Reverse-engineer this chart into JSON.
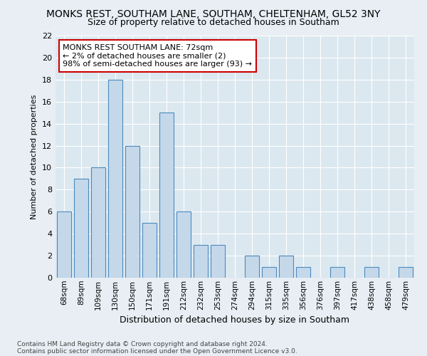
{
  "title1": "MONKS REST, SOUTHAM LANE, SOUTHAM, CHELTENHAM, GL52 3NY",
  "title2": "Size of property relative to detached houses in Southam",
  "xlabel": "Distribution of detached houses by size in Southam",
  "ylabel": "Number of detached properties",
  "footnote1": "Contains HM Land Registry data © Crown copyright and database right 2024.",
  "footnote2": "Contains public sector information licensed under the Open Government Licence v3.0.",
  "categories": [
    "68sqm",
    "89sqm",
    "109sqm",
    "130sqm",
    "150sqm",
    "171sqm",
    "191sqm",
    "212sqm",
    "232sqm",
    "253sqm",
    "274sqm",
    "294sqm",
    "315sqm",
    "335sqm",
    "356sqm",
    "376sqm",
    "397sqm",
    "417sqm",
    "438sqm",
    "458sqm",
    "479sqm"
  ],
  "values": [
    6,
    9,
    10,
    18,
    12,
    5,
    15,
    6,
    3,
    3,
    0,
    2,
    1,
    2,
    1,
    0,
    1,
    0,
    1,
    0,
    1
  ],
  "bar_color": "#c5d8ea",
  "bar_edge_color": "#4a8bbf",
  "annotation_title": "MONKS REST SOUTHAM LANE: 72sqm",
  "annotation_line1": "← 2% of detached houses are smaller (2)",
  "annotation_line2": "98% of semi-detached houses are larger (93) →",
  "annotation_box_color": "#ffffff",
  "annotation_box_edge": "#cc0000",
  "ylim": [
    0,
    22
  ],
  "yticks": [
    0,
    2,
    4,
    6,
    8,
    10,
    12,
    14,
    16,
    18,
    20,
    22
  ],
  "background_color": "#e8eef4",
  "plot_bg_color": "#dce8f0",
  "grid_color": "#ffffff",
  "title1_fontsize": 10,
  "title2_fontsize": 9
}
